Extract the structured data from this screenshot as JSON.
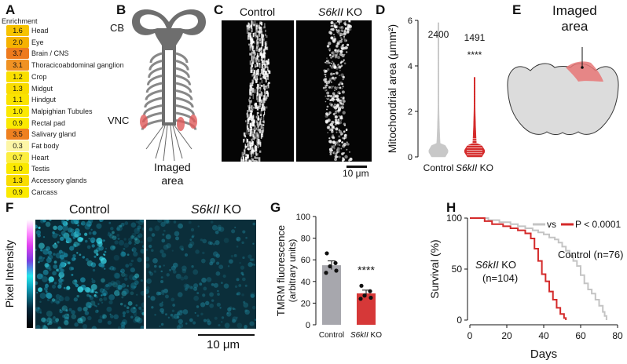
{
  "panels": {
    "A": {
      "label": "A",
      "header": "Enrichment",
      "rows": [
        {
          "value": "1.6",
          "tissue": "Head",
          "color": "#f7c300"
        },
        {
          "value": "2.0",
          "tissue": "Eye",
          "color": "#f6b200"
        },
        {
          "value": "3.7",
          "tissue": "Brain / CNS",
          "color": "#ee7a1d"
        },
        {
          "value": "3.1",
          "tissue": "Thoracicoabdominal ganglion",
          "color": "#f09223"
        },
        {
          "value": "1.2",
          "tissue": "Crop",
          "color": "#f9df00"
        },
        {
          "value": "1.3",
          "tissue": "Midgut",
          "color": "#f9dc00"
        },
        {
          "value": "1.1",
          "tissue": "Hindgut",
          "color": "#fae300"
        },
        {
          "value": "1.0",
          "tissue": "Malpighian Tubules",
          "color": "#fbe900"
        },
        {
          "value": "0.9",
          "tissue": "Rectal pad",
          "color": "#fbea00"
        },
        {
          "value": "3.5",
          "tissue": "Salivary gland",
          "color": "#ef8020"
        },
        {
          "value": "0.3",
          "tissue": "Fat body",
          "color": "#fdf6a6"
        },
        {
          "value": "0.7",
          "tissue": "Heart",
          "color": "#fcee40"
        },
        {
          "value": "1.0",
          "tissue": "Testis",
          "color": "#fbe900"
        },
        {
          "value": "1.3",
          "tissue": "Accessory glands",
          "color": "#f9dc00"
        },
        {
          "value": "0.9",
          "tissue": "Carcass",
          "color": "#fbea00"
        }
      ]
    },
    "B": {
      "label": "B",
      "cb": "CB",
      "vnc": "VNC",
      "imaged_area": "Imaged\narea"
    },
    "C": {
      "label": "C",
      "control": "Control",
      "ko": "S6kII",
      "ko_suffix": " KO",
      "scalebar": "10 μm"
    },
    "E": {
      "label": "E",
      "imaged_area": "Imaged\narea"
    },
    "F": {
      "label": "F",
      "control": "Control",
      "ko": "S6kII",
      "ko_suffix": " KO",
      "colorbar_label": "Pixel Intensity",
      "scalebar": "10 μm"
    },
    "H": {
      "label": "H",
      "ko_label": "S6kII",
      "ko_label_suffix": " KO",
      "ko_n": "(n=104)",
      "control_label": "Control (n=76)",
      "legend_vs": "vs",
      "legend_p": "P < 0.0001"
    }
  },
  "chart_data": [
    {
      "id": "D",
      "type": "violin",
      "panel_label": "D",
      "ylabel": "Mitochondrial area (μmm²)",
      "ylim": [
        0,
        6
      ],
      "yticks": [
        "0",
        "2",
        "4",
        "6"
      ],
      "categories": [
        "Control",
        "S6kII KO"
      ],
      "n_labels": [
        "2400",
        "1491"
      ],
      "significance": "****",
      "colors": [
        "#c8c8c8",
        "#d42a2a"
      ]
    },
    {
      "id": "G",
      "type": "bar",
      "panel_label": "G",
      "ylabel": "TMRM fluorescence\n(arbitrary units)",
      "ylim": [
        0,
        100
      ],
      "yticks": [
        "0",
        "20",
        "40",
        "60",
        "80",
        "100"
      ],
      "categories": [
        "Control",
        "S6kII KO"
      ],
      "values": [
        55,
        29
      ],
      "errors": [
        4,
        3
      ],
      "points": [
        [
          66,
          57,
          54,
          50,
          48
        ],
        [
          36,
          31,
          27,
          25,
          24
        ]
      ],
      "significance": "****",
      "colors": [
        "#a7a7ad",
        "#d63838"
      ]
    },
    {
      "id": "H",
      "type": "line",
      "panel_label": "H",
      "xlabel": "Days",
      "ylabel": "Survival (%)",
      "xlim": [
        0,
        80
      ],
      "ylim": [
        0,
        100
      ],
      "xticks": [
        "0",
        "20",
        "40",
        "60",
        "80"
      ],
      "yticks": [
        "0",
        "50",
        "100"
      ],
      "series": [
        {
          "name": "Control",
          "color": "#c4c4c4",
          "x": [
            0,
            10,
            16,
            22,
            26,
            30,
            34,
            37,
            40,
            43,
            46,
            48,
            50,
            52,
            54,
            56,
            58,
            60,
            62,
            64,
            66,
            68,
            70,
            72,
            73,
            74
          ],
          "y": [
            100,
            98,
            96,
            94,
            92,
            90,
            88,
            86,
            84,
            81,
            79,
            76,
            72,
            68,
            63,
            58,
            53,
            44,
            36,
            30,
            26,
            20,
            14,
            8,
            4,
            0
          ]
        },
        {
          "name": "S6kII KO",
          "color": "#d42a2a",
          "x": [
            0,
            8,
            12,
            18,
            22,
            26,
            30,
            33,
            35,
            37,
            39,
            41,
            43,
            45,
            47,
            49,
            51,
            52
          ],
          "y": [
            100,
            97,
            94,
            92,
            90,
            88,
            85,
            80,
            70,
            58,
            45,
            38,
            28,
            20,
            12,
            6,
            2,
            0
          ]
        }
      ]
    }
  ]
}
